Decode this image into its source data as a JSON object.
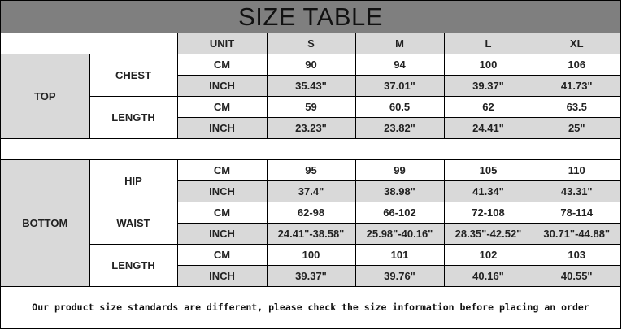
{
  "title": "SIZE TABLE",
  "header": {
    "unit": "UNIT",
    "sizes": [
      "S",
      "M",
      "L",
      "XL"
    ]
  },
  "sections": [
    {
      "name": "TOP",
      "measures": [
        {
          "name": "CHEST",
          "rows": [
            {
              "unit": "CM",
              "values": [
                "90",
                "94",
                "100",
                "106"
              ]
            },
            {
              "unit": "INCH",
              "values": [
                "35.43\"",
                "37.01\"",
                "39.37\"",
                "41.73\""
              ]
            }
          ]
        },
        {
          "name": "LENGTH",
          "rows": [
            {
              "unit": "CM",
              "values": [
                "59",
                "60.5",
                "62",
                "63.5"
              ]
            },
            {
              "unit": "INCH",
              "values": [
                "23.23\"",
                "23.82\"",
                "24.41\"",
                "25\""
              ]
            }
          ]
        }
      ]
    },
    {
      "name": "BOTTOM",
      "measures": [
        {
          "name": "HIP",
          "rows": [
            {
              "unit": "CM",
              "values": [
                "95",
                "99",
                "105",
                "110"
              ]
            },
            {
              "unit": "INCH",
              "values": [
                "37.4\"",
                "38.98\"",
                "41.34\"",
                "43.31\""
              ]
            }
          ]
        },
        {
          "name": "WAIST",
          "rows": [
            {
              "unit": "CM",
              "values": [
                "62-98",
                "66-102",
                "72-108",
                "78-114"
              ]
            },
            {
              "unit": "INCH",
              "values": [
                "24.41\"-38.58\"",
                "25.98\"-40.16\"",
                "28.35\"-42.52\"",
                "30.71\"-44.88\""
              ]
            }
          ]
        },
        {
          "name": "LENGTH",
          "rows": [
            {
              "unit": "CM",
              "values": [
                "100",
                "101",
                "102",
                "103"
              ]
            },
            {
              "unit": "INCH",
              "values": [
                "39.37\"",
                "39.76\"",
                "40.16\"",
                "40.55\""
              ]
            }
          ]
        }
      ]
    }
  ],
  "footer": "Our product size standards are different, please check the size information before placing an order"
}
